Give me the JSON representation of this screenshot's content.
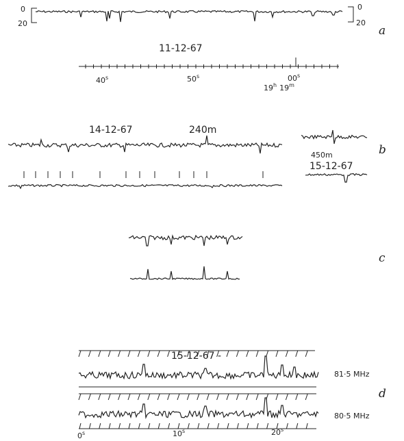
{
  "panels": {
    "a": {
      "letter": "a",
      "scale_left": [
        "0",
        "20"
      ],
      "scale_right": [
        "0",
        "20"
      ],
      "date": "11-12-67",
      "time_labels": [
        {
          "main": "40",
          "sup": "s"
        },
        {
          "main": "50",
          "sup": "s"
        },
        {
          "main": "00",
          "sup": "s"
        }
      ],
      "hour_label": {
        "h": "19",
        "h_sup": "h",
        "m": "19",
        "m_sup": "m"
      }
    },
    "b": {
      "letter": "b",
      "date": "14-12-67",
      "wavelength": "240m",
      "right_wavelength": "450m",
      "right_date": "15-12-67"
    },
    "c": {
      "letter": "c"
    },
    "d": {
      "letter": "d",
      "date": "15-12-67 -",
      "freq_top": "81·5 MHz",
      "freq_bottom": "80·5 MHz",
      "time_labels": [
        {
          "main": "0",
          "sup": "s"
        },
        {
          "main": "10",
          "sup": "s"
        },
        {
          "main": "20",
          "sup": "s"
        }
      ]
    }
  }
}
